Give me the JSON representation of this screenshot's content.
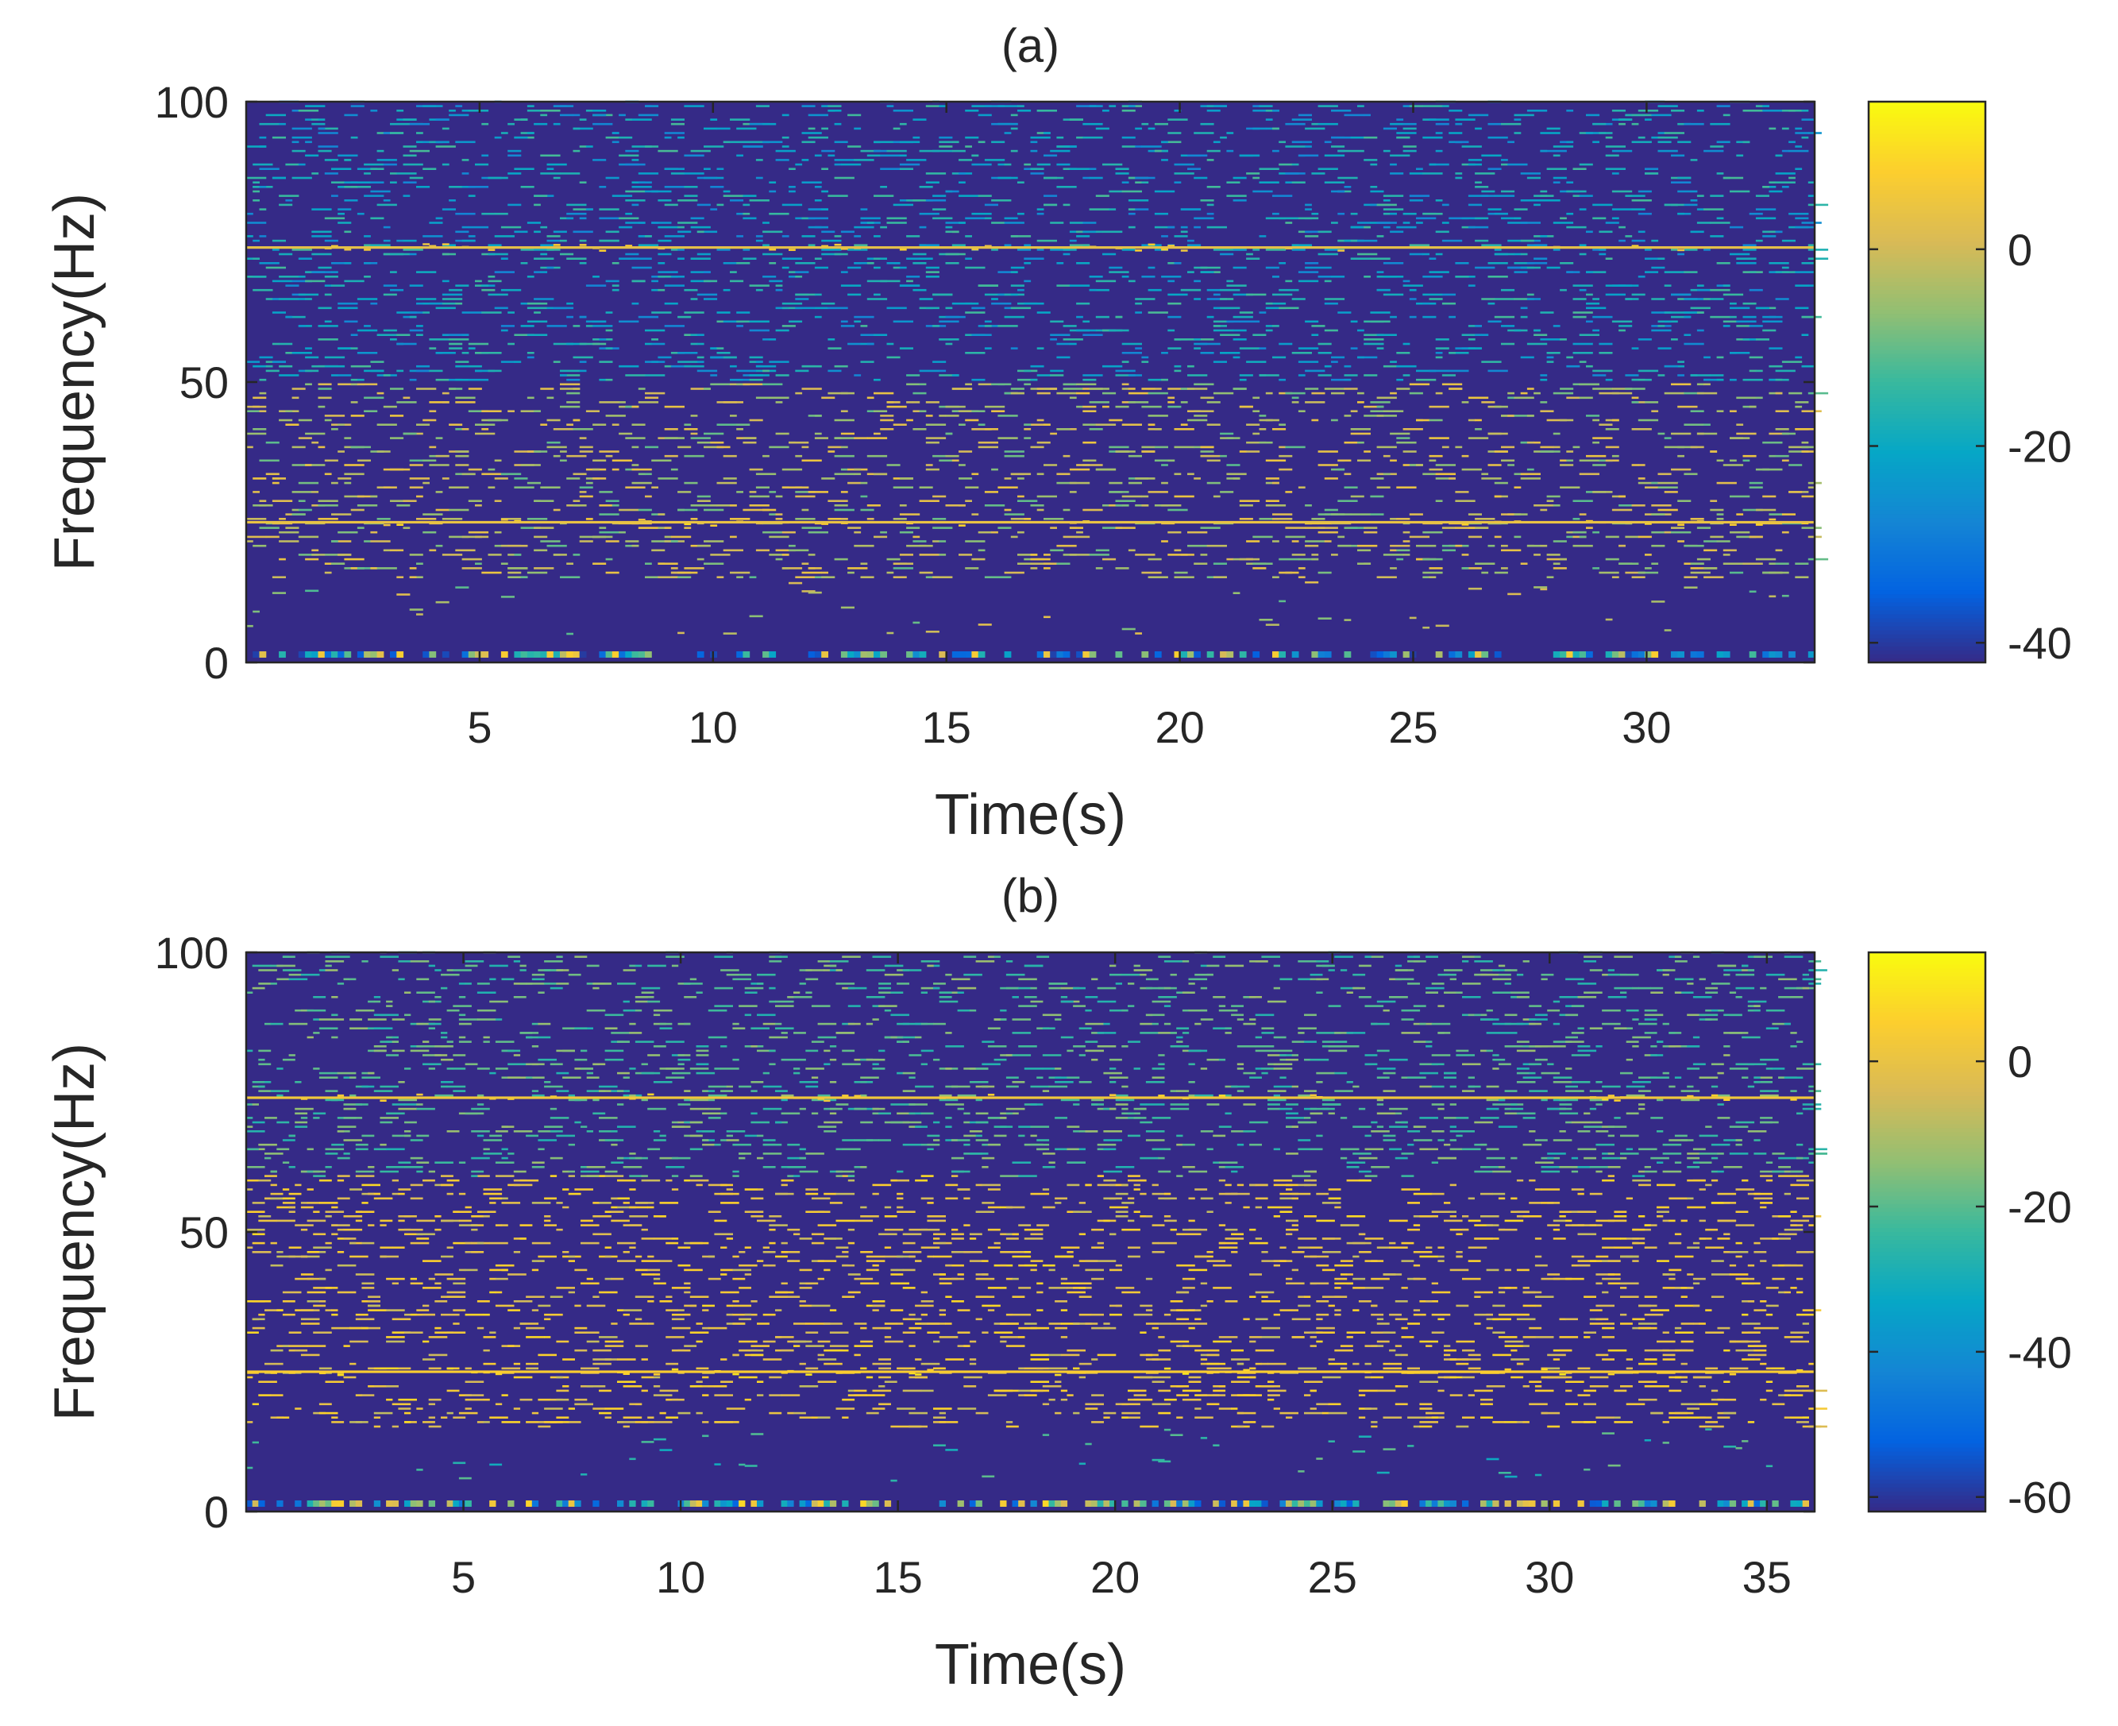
{
  "chart_data": [
    {
      "type": "heatmap",
      "panel_label": "(a)",
      "title": "(a)",
      "xlabel": "Time(s)",
      "ylabel": "Frequency(Hz)",
      "xlim": [
        0,
        33.6
      ],
      "ylim": [
        0,
        100
      ],
      "xticks": [
        5,
        10,
        15,
        20,
        25,
        30
      ],
      "yticks": [
        0,
        50,
        100
      ],
      "colorbar": {
        "range": [
          -42,
          15
        ],
        "ticks": [
          0,
          -20,
          -40
        ]
      },
      "background_level": -42,
      "dominant_lines": [
        {
          "frequency_hz": 74,
          "level": 3
        },
        {
          "frequency_hz": 25,
          "level": 4
        }
      ],
      "scatter_bands": [
        {
          "from_hz": 15,
          "to_hz": 50,
          "typical_level": -3
        },
        {
          "from_hz": 50,
          "to_hz": 100,
          "typical_level": -20
        }
      ],
      "low_frequency_row": {
        "frequency_hz": 1,
        "level_range": [
          -40,
          8
        ]
      }
    },
    {
      "type": "heatmap",
      "panel_label": "(b)",
      "title": "(b)",
      "xlabel": "Time(s)",
      "ylabel": "Frequency(Hz)",
      "xlim": [
        0,
        36.1
      ],
      "ylim": [
        0,
        100
      ],
      "xticks": [
        5,
        10,
        15,
        20,
        25,
        30,
        35
      ],
      "yticks": [
        0,
        50,
        100
      ],
      "colorbar": {
        "range": [
          -62,
          15
        ],
        "ticks": [
          0,
          -20,
          -40,
          -60
        ]
      },
      "background_level": -62,
      "dominant_lines": [
        {
          "frequency_hz": 25,
          "level": 5
        },
        {
          "frequency_hz": 74,
          "level": 2
        }
      ],
      "scatter_bands": [
        {
          "from_hz": 15,
          "to_hz": 60,
          "typical_level": 0
        },
        {
          "from_hz": 60,
          "to_hz": 100,
          "typical_level": -20
        }
      ],
      "low_frequency_row": {
        "frequency_hz": 1,
        "level_range": [
          -55,
          8
        ]
      }
    }
  ],
  "colors": {
    "colormap": [
      "#352a87",
      "#0363e1",
      "#1485d4",
      "#06a7c6",
      "#38b99e",
      "#92bf73",
      "#d9ba56",
      "#fcce2e",
      "#f9fb0e"
    ],
    "axis": "#262626",
    "background": "#ffffff"
  }
}
